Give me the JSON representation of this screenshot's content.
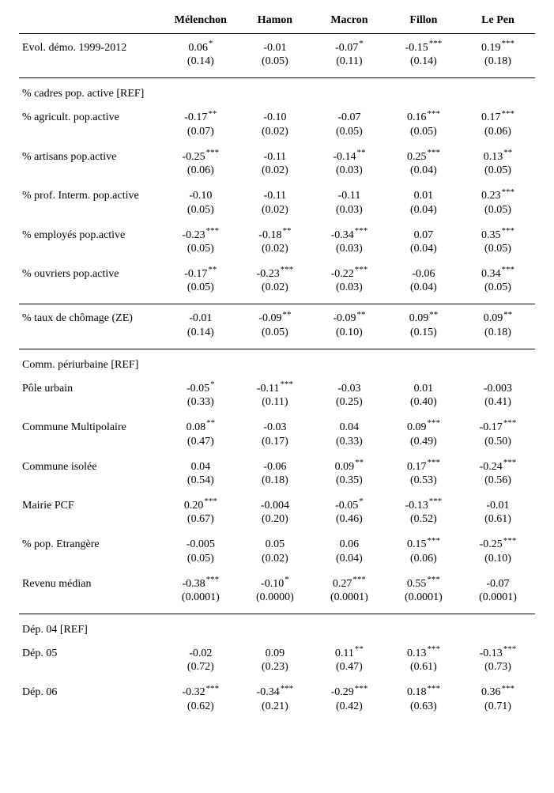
{
  "columns": [
    "Mélenchon",
    "Hamon",
    "Macron",
    "Fillon",
    "Le Pen"
  ],
  "sections": [
    {
      "header": null,
      "rows": [
        {
          "label": "Evol. démo. 1999-2012",
          "cells": [
            {
              "v": "0.06",
              "sig": "*",
              "se": "(0.14)"
            },
            {
              "v": "-0.01",
              "sig": "",
              "se": "(0.05)"
            },
            {
              "v": "-0.07",
              "sig": "*",
              "se": "(0.11)"
            },
            {
              "v": "-0.15",
              "sig": "***",
              "se": "(0.14)"
            },
            {
              "v": "0.19",
              "sig": "***",
              "se": "(0.18)"
            }
          ]
        }
      ]
    },
    {
      "header": "% cadres pop. active [REF]",
      "rows": [
        {
          "label": "% agricult. pop.active",
          "cells": [
            {
              "v": "-0.17",
              "sig": "**",
              "se": "(0.07)"
            },
            {
              "v": "-0.10",
              "sig": "",
              "se": "(0.02)"
            },
            {
              "v": "-0.07",
              "sig": "",
              "se": "(0.05)"
            },
            {
              "v": "0.16",
              "sig": "***",
              "se": "(0.05)"
            },
            {
              "v": "0.17",
              "sig": "***",
              "se": "(0.06)"
            }
          ]
        },
        {
          "label": "% artisans pop.active",
          "cells": [
            {
              "v": "-0.25",
              "sig": "***",
              "se": "(0.06)"
            },
            {
              "v": "-0.11",
              "sig": "",
              "se": "(0.02)"
            },
            {
              "v": "-0.14",
              "sig": "**",
              "se": "(0.03)"
            },
            {
              "v": "0.25",
              "sig": "***",
              "se": "(0.04)"
            },
            {
              "v": "0.13",
              "sig": "**",
              "se": "(0.05)"
            }
          ]
        },
        {
          "label": "% prof. Interm. pop.active",
          "cells": [
            {
              "v": "-0.10",
              "sig": "",
              "se": "(0.05)"
            },
            {
              "v": "-0.11",
              "sig": "",
              "se": "(0.02)"
            },
            {
              "v": "-0.11",
              "sig": "",
              "se": "(0.03)"
            },
            {
              "v": "0.01",
              "sig": "",
              "se": "(0.04)"
            },
            {
              "v": "0.23",
              "sig": "***",
              "se": "(0.05)"
            }
          ]
        },
        {
          "label": "% employés pop.active",
          "cells": [
            {
              "v": "-0.23",
              "sig": "***",
              "se": "(0.05)"
            },
            {
              "v": "-0.18",
              "sig": "**",
              "se": "(0.02)"
            },
            {
              "v": "-0.34",
              "sig": "***",
              "se": "(0.03)"
            },
            {
              "v": "0.07",
              "sig": "",
              "se": "(0.04)"
            },
            {
              "v": "0.35",
              "sig": "***",
              "se": "(0.05)"
            }
          ]
        },
        {
          "label": "% ouvriers pop.active",
          "cells": [
            {
              "v": "-0.17",
              "sig": "**",
              "se": "(0.05)"
            },
            {
              "v": "-0.23",
              "sig": "***",
              "se": "(0.02)"
            },
            {
              "v": "-0.22",
              "sig": "***",
              "se": "(0.03)"
            },
            {
              "v": "-0.06",
              "sig": "",
              "se": "(0.04)"
            },
            {
              "v": "0.34",
              "sig": "***",
              "se": "(0.05)"
            }
          ]
        }
      ]
    },
    {
      "header": null,
      "rows": [
        {
          "label": "% taux de chômage (ZE)",
          "cells": [
            {
              "v": "-0.01",
              "sig": "",
              "se": "(0.14)"
            },
            {
              "v": "-0.09",
              "sig": "**",
              "se": "(0.05)"
            },
            {
              "v": "-0.09",
              "sig": "**",
              "se": "(0.10)"
            },
            {
              "v": "0.09",
              "sig": "**",
              "se": "(0.15)"
            },
            {
              "v": "0.09",
              "sig": "**",
              "se": "(0.18)"
            }
          ]
        }
      ]
    },
    {
      "header": "Comm. périurbaine [REF]",
      "rows": [
        {
          "label": "Pôle urbain",
          "cells": [
            {
              "v": "-0.05",
              "sig": "*",
              "se": "(0.33)"
            },
            {
              "v": "-0.11",
              "sig": "***",
              "se": "(0.11)"
            },
            {
              "v": "-0.03",
              "sig": "",
              "se": "(0.25)"
            },
            {
              "v": "0.01",
              "sig": "",
              "se": "(0.40)"
            },
            {
              "v": "-0.003",
              "sig": "",
              "se": "(0.41)"
            }
          ]
        },
        {
          "label": "Commune Multipolaire",
          "cells": [
            {
              "v": "0.08",
              "sig": "**",
              "se": "(0.47)"
            },
            {
              "v": "-0.03",
              "sig": "",
              "se": "(0.17)"
            },
            {
              "v": "0.04",
              "sig": "",
              "se": "(0.33)"
            },
            {
              "v": "0.09",
              "sig": "***",
              "se": "(0.49)"
            },
            {
              "v": "-0.17",
              "sig": "***",
              "se": "(0.50)"
            }
          ]
        },
        {
          "label": "Commune isolée",
          "cells": [
            {
              "v": "0.04",
              "sig": "",
              "se": "(0.54)"
            },
            {
              "v": "-0.06",
              "sig": "",
              "se": "(0.18)"
            },
            {
              "v": "0.09",
              "sig": "**",
              "se": "(0.35)"
            },
            {
              "v": "0.17",
              "sig": "***",
              "se": "(0.53)"
            },
            {
              "v": "-0.24",
              "sig": "***",
              "se": "(0.56)"
            }
          ]
        },
        {
          "label": "Mairie PCF",
          "cells": [
            {
              "v": "0.20",
              "sig": "***",
              "se": "(0.67)"
            },
            {
              "v": "-0.004",
              "sig": "",
              "se": "(0.20)"
            },
            {
              "v": "-0.05",
              "sig": "*",
              "se": "(0.46)"
            },
            {
              "v": "-0.13",
              "sig": "***",
              "se": "(0.52)"
            },
            {
              "v": "-0.01",
              "sig": "",
              "se": "(0.61)"
            }
          ]
        },
        {
          "label": "% pop. Etrangère",
          "cells": [
            {
              "v": "-0.005",
              "sig": "",
              "se": "(0.05)"
            },
            {
              "v": "0.05",
              "sig": "",
              "se": "(0.02)"
            },
            {
              "v": "0.06",
              "sig": "",
              "se": "(0.04)"
            },
            {
              "v": "0.15",
              "sig": "***",
              "se": "(0.06)"
            },
            {
              "v": "-0.25",
              "sig": "***",
              "se": "(0.10)"
            }
          ]
        },
        {
          "label": "Revenu médian",
          "cells": [
            {
              "v": "-0.38",
              "sig": "***",
              "se": "(0.0001)"
            },
            {
              "v": "-0.10",
              "sig": "*",
              "se": "(0.0000)"
            },
            {
              "v": "0.27",
              "sig": "***",
              "se": "(0.0001)"
            },
            {
              "v": "0.55",
              "sig": "***",
              "se": "(0.0001)"
            },
            {
              "v": "-0.07",
              "sig": "",
              "se": "(0.0001)"
            }
          ]
        }
      ]
    },
    {
      "header": "Dép. 04 [REF]",
      "rows": [
        {
          "label": "Dép. 05",
          "cells": [
            {
              "v": "-0.02",
              "sig": "",
              "se": "(0.72)"
            },
            {
              "v": "0.09",
              "sig": "",
              "se": "(0.23)"
            },
            {
              "v": "0.11",
              "sig": "**",
              "se": "(0.47)"
            },
            {
              "v": "0.13",
              "sig": "***",
              "se": "(0.61)"
            },
            {
              "v": "-0.13",
              "sig": "***",
              "se": "(0.73)"
            }
          ]
        },
        {
          "label": "Dép. 06",
          "cells": [
            {
              "v": "-0.32",
              "sig": "***",
              "se": "(0.62)"
            },
            {
              "v": "-0.34",
              "sig": "***",
              "se": "(0.21)"
            },
            {
              "v": "-0.29",
              "sig": "***",
              "se": "(0.42)"
            },
            {
              "v": "0.18",
              "sig": "***",
              "se": "(0.63)"
            },
            {
              "v": "0.36",
              "sig": "***",
              "se": "(0.71)"
            }
          ]
        }
      ]
    }
  ]
}
